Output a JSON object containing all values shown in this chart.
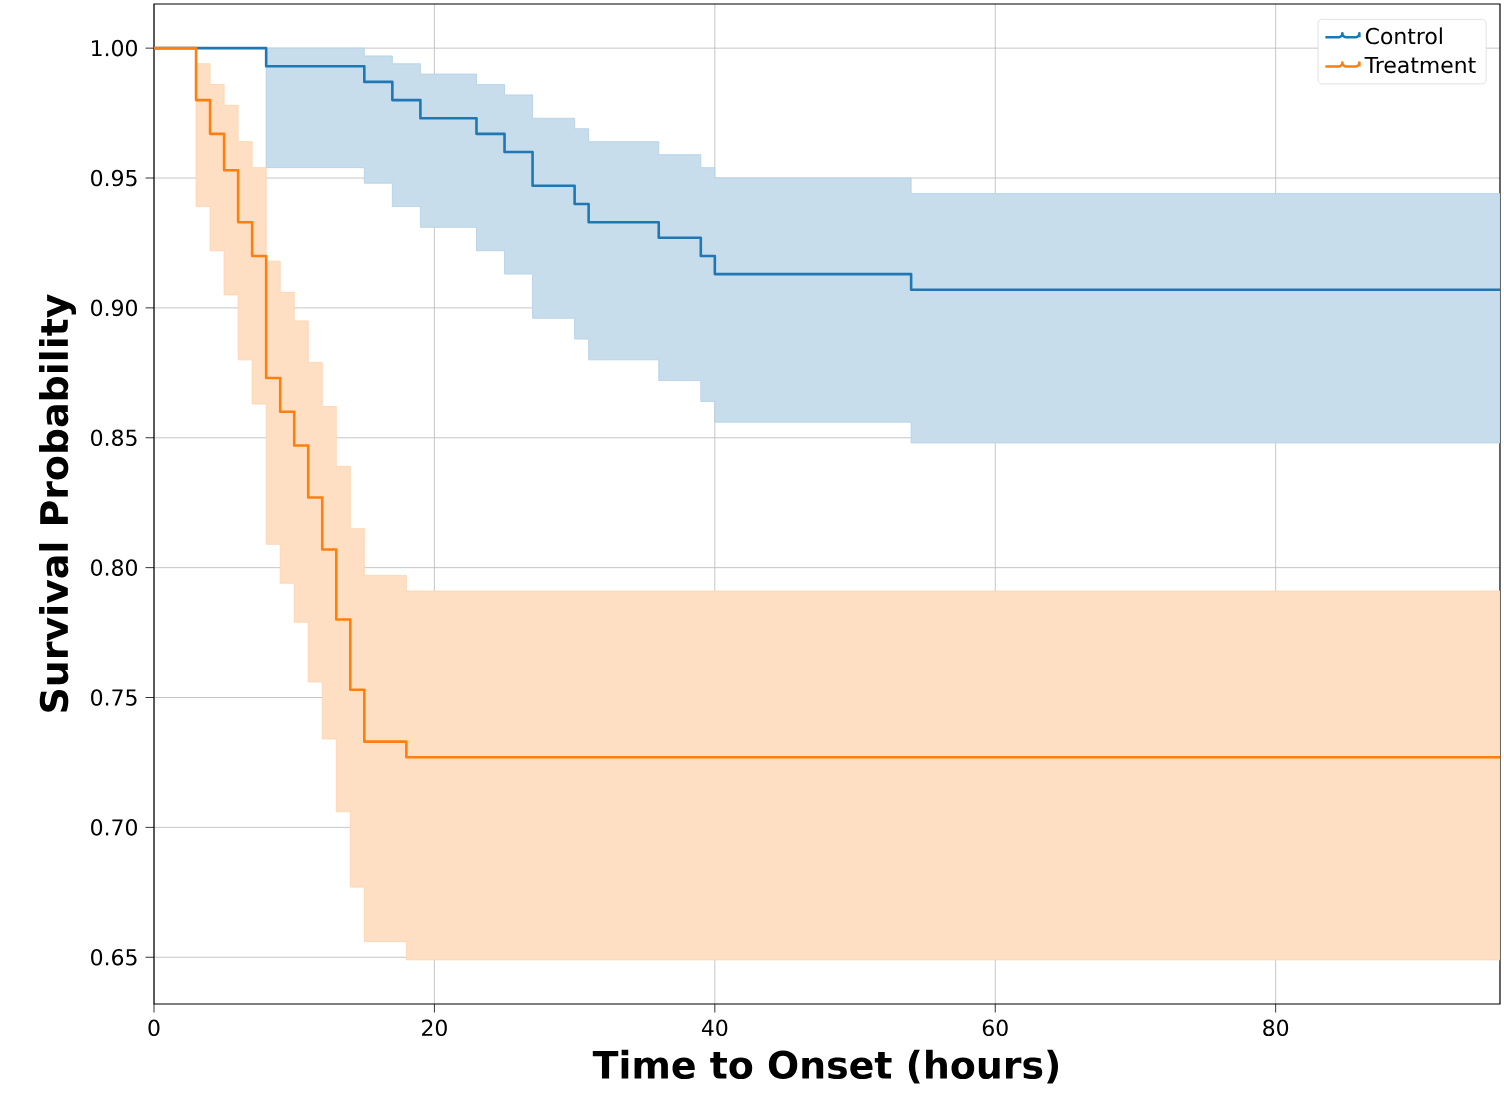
{
  "chart_data": {
    "type": "step",
    "xlabel": "Time to Onset (hours)",
    "ylabel": "Survival Probability",
    "xlim": [
      0,
      96
    ],
    "ylim": [
      0.632,
      1.017
    ],
    "xticks": [
      0,
      20,
      40,
      60,
      80
    ],
    "yticks": [
      {
        "value": 0.65,
        "label": "0.65"
      },
      {
        "value": 0.7,
        "label": "0.70"
      },
      {
        "value": 0.75,
        "label": "0.75"
      },
      {
        "value": 0.8,
        "label": "0.80"
      },
      {
        "value": 0.85,
        "label": "0.85"
      },
      {
        "value": 0.9,
        "label": "0.90"
      },
      {
        "value": 0.95,
        "label": "0.95"
      },
      {
        "value": 1.0,
        "label": "1.00"
      }
    ],
    "grid": true,
    "legend": "top right",
    "line_style": "solid",
    "series": [
      {
        "name": "Control",
        "color": "#1f77b4",
        "x": [
          0,
          8,
          15,
          17,
          19,
          23,
          25,
          27,
          30,
          31,
          36,
          39,
          40,
          54,
          96
        ],
        "values": [
          1.0,
          0.993,
          0.987,
          0.98,
          0.973,
          0.967,
          0.96,
          0.947,
          0.94,
          0.933,
          0.927,
          0.92,
          0.913,
          0.907,
          0.907
        ],
        "upper": [
          null,
          1.0,
          0.997,
          0.994,
          0.99,
          0.986,
          0.982,
          0.973,
          0.969,
          0.964,
          0.959,
          0.954,
          0.95,
          0.944,
          0.944
        ],
        "lower": [
          null,
          0.954,
          0.948,
          0.939,
          0.931,
          0.922,
          0.913,
          0.896,
          0.888,
          0.88,
          0.872,
          0.864,
          0.856,
          0.848,
          0.848
        ]
      },
      {
        "name": "Treatment",
        "color": "#ff7f0e",
        "x": [
          0,
          3,
          4,
          5,
          6,
          7,
          8,
          9,
          10,
          11,
          12,
          13,
          14,
          15,
          18,
          96
        ],
        "values": [
          1.0,
          0.98,
          0.967,
          0.953,
          0.933,
          0.92,
          0.873,
          0.86,
          0.847,
          0.827,
          0.807,
          0.78,
          0.753,
          0.733,
          0.727,
          0.727
        ],
        "upper": [
          null,
          0.994,
          0.986,
          0.978,
          0.964,
          0.954,
          0.918,
          0.906,
          0.895,
          0.879,
          0.862,
          0.839,
          0.815,
          0.797,
          0.791,
          0.791
        ],
        "lower": [
          null,
          0.939,
          0.922,
          0.905,
          0.88,
          0.863,
          0.809,
          0.794,
          0.779,
          0.756,
          0.734,
          0.706,
          0.677,
          0.656,
          0.649,
          0.649
        ]
      }
    ]
  }
}
